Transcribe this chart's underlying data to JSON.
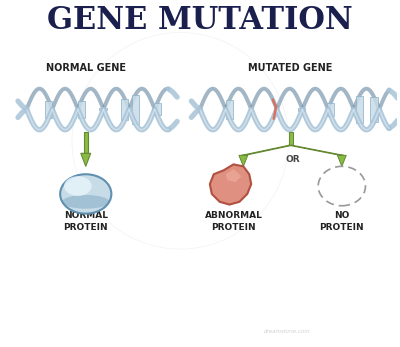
{
  "title": "GENE MUTATION",
  "title_fontsize": 22,
  "title_color": "#1a1f4e",
  "bg_color": "#ffffff",
  "label_normal_gene": "NORMAL GENE",
  "label_mutated_gene": "MUTATED GENE",
  "label_normal_protein": "NORMAL\nPROTEIN",
  "label_abnormal_protein": "ABNORMAL\nPROTEIN",
  "label_no_protein": "NO\nPROTEIN",
  "label_or": "OR",
  "dna_strand_color": "#a8c4d8",
  "dna_strand_dark": "#7090a8",
  "dna_rung_color": "#8ab0c8",
  "dna_rung_fill": "#c8dce8",
  "mutation_color": "#d97060",
  "arrow_color": "#88bb44",
  "arrow_dark": "#668833",
  "normal_protein_fill": "#c8dce8",
  "normal_protein_edge": "#6090b0",
  "normal_protein_highlight": "#e8f4fc",
  "abnormal_protein_fill": "#e09080",
  "abnormal_protein_edge": "#b05040",
  "abnormal_protein_light": "#eeb0a0",
  "no_protein_edge": "#999999",
  "watermark": "dreamstime.com",
  "label_color": "#222222",
  "label_fontsize": 6.5,
  "sublabel_fontsize": 6.5
}
